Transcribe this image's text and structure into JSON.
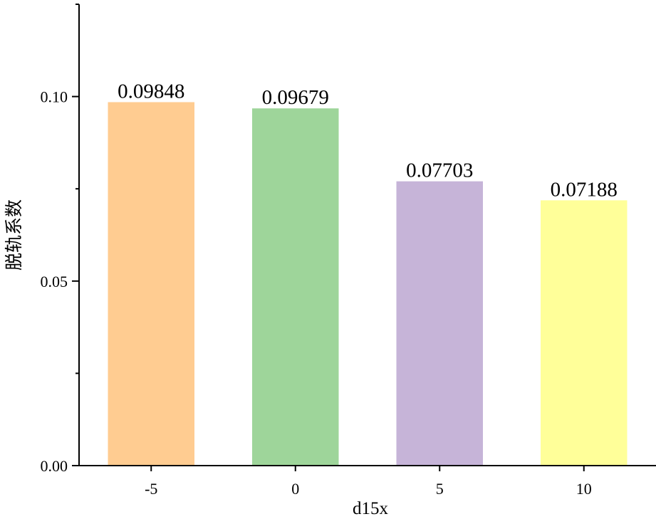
{
  "chart_data": {
    "type": "bar",
    "categories": [
      "-5",
      "0",
      "5",
      "10"
    ],
    "values": [
      0.09848,
      0.09679,
      0.07703,
      0.07188
    ],
    "data_labels": [
      "0.09848",
      "0.09679",
      "0.07703",
      "0.07188"
    ],
    "colors": [
      "#FFCC91",
      "#9ED59A",
      "#C6B4D8",
      "#FFFF99"
    ],
    "title": "",
    "xlabel": "d15x",
    "ylabel": "脱轨系数",
    "ylim": [
      0,
      0.125
    ],
    "yticks": [
      {
        "value": 0.0,
        "label": "0.00"
      },
      {
        "value": 0.05,
        "label": "0.05"
      },
      {
        "value": 0.1,
        "label": "0.10"
      }
    ],
    "grid": false,
    "legend": false
  }
}
